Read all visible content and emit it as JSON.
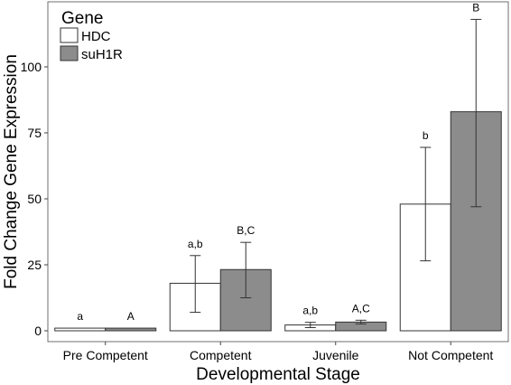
{
  "chart_data": {
    "type": "bar",
    "xlabel": "Developmental Stage",
    "ylabel": "Fold Change Gene Expression",
    "ylim": [
      0,
      122
    ],
    "yticks": [
      0,
      25,
      50,
      75,
      100
    ],
    "categories": [
      "Pre Competent",
      "Competent",
      "Juvenile",
      "Not Competent"
    ],
    "legend": {
      "title": "Gene",
      "position": "top-left"
    },
    "series": [
      {
        "name": "HDC",
        "color": "#ffffff",
        "values": [
          1,
          18,
          2.2,
          48
        ],
        "error_low": [
          1,
          7,
          1.2,
          26.5
        ],
        "error_high": [
          1,
          28.5,
          3.2,
          69.5
        ],
        "labels": [
          "a",
          "a,b",
          "a,b",
          "b"
        ]
      },
      {
        "name": "suH1R",
        "color": "#8c8c8c",
        "values": [
          1,
          23.2,
          3.3,
          83
        ],
        "error_low": [
          1,
          12.5,
          2.6,
          47
        ],
        "error_high": [
          1,
          33.5,
          4,
          118
        ],
        "labels": [
          "A",
          "B,C",
          "A,C",
          "B"
        ]
      }
    ],
    "grid": false
  }
}
